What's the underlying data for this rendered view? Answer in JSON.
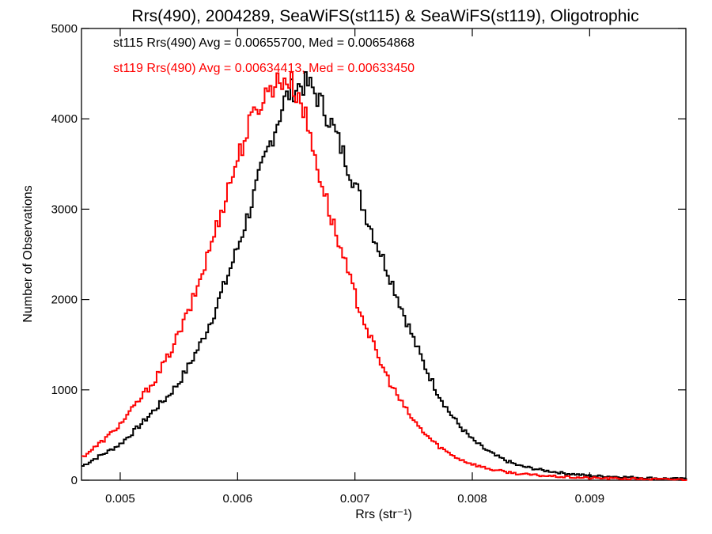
{
  "chart_data": {
    "type": "line",
    "title": "Rrs(490), 2004289, SeaWiFS(st115) & SeaWiFS(st119), Oligotrophic",
    "xlabel": "Rrs (str⁻¹)",
    "ylabel": "Number of Observations",
    "xlim": [
      0.00467,
      0.00982
    ],
    "ylim": [
      0,
      5000
    ],
    "x_ticks": [
      0.005,
      0.006,
      0.007,
      0.008,
      0.009
    ],
    "x_tick_labels": [
      "0.005",
      "0.006",
      "0.007",
      "0.008",
      "0.009"
    ],
    "y_ticks": [
      0,
      1000,
      2000,
      3000,
      4000,
      5000
    ],
    "y_tick_labels": [
      "0",
      "1000",
      "2000",
      "3000",
      "4000",
      "5000"
    ],
    "legend_position": "top-left",
    "series": [
      {
        "name": "st115",
        "label": "st115 Rrs(490) Avg = 0.00655700, Med = 0.00654868",
        "color": "#000000",
        "x": [
          0.00467,
          0.0048,
          0.0049,
          0.005,
          0.0051,
          0.0052,
          0.0053,
          0.0054,
          0.0055,
          0.0056,
          0.0057,
          0.0058,
          0.0059,
          0.006,
          0.0061,
          0.0062,
          0.0063,
          0.0064,
          0.00645,
          0.0065,
          0.00655,
          0.0066,
          0.00665,
          0.0067,
          0.0068,
          0.0069,
          0.007,
          0.0071,
          0.0072,
          0.0073,
          0.0074,
          0.0075,
          0.0076,
          0.0077,
          0.0078,
          0.0079,
          0.008,
          0.0081,
          0.0082,
          0.0083,
          0.0084,
          0.0086,
          0.0088,
          0.009,
          0.0092,
          0.0094,
          0.0096,
          0.00982
        ],
        "values": [
          150,
          250,
          320,
          400,
          520,
          650,
          790,
          920,
          1080,
          1300,
          1550,
          1850,
          2200,
          2570,
          2980,
          3420,
          3820,
          4200,
          4300,
          4350,
          4380,
          4380,
          4310,
          4200,
          3950,
          3620,
          3280,
          2920,
          2580,
          2250,
          1900,
          1560,
          1250,
          980,
          760,
          590,
          450,
          350,
          270,
          210,
          160,
          110,
          75,
          50,
          40,
          30,
          20,
          15
        ]
      },
      {
        "name": "st119",
        "label": "st119 Rrs(490) Avg = 0.00634413, Med = 0.00633450",
        "color": "#ff0000",
        "x": [
          0.00467,
          0.0048,
          0.0049,
          0.005,
          0.0051,
          0.0052,
          0.0053,
          0.0054,
          0.0055,
          0.0056,
          0.0057,
          0.0058,
          0.0059,
          0.006,
          0.0061,
          0.0062,
          0.0063,
          0.0064,
          0.00645,
          0.0065,
          0.00655,
          0.0066,
          0.0067,
          0.0068,
          0.0069,
          0.007,
          0.0071,
          0.0072,
          0.0073,
          0.0074,
          0.0075,
          0.0076,
          0.0077,
          0.0078,
          0.0079,
          0.008,
          0.0081,
          0.0082,
          0.0083,
          0.0084,
          0.0086,
          0.0088,
          0.009,
          0.0092,
          0.0094,
          0.0096,
          0.00982
        ],
        "values": [
          250,
          380,
          490,
          620,
          780,
          950,
          1120,
          1350,
          1620,
          1920,
          2300,
          2720,
          3150,
          3560,
          3930,
          4200,
          4380,
          4450,
          4410,
          4300,
          4180,
          3900,
          3380,
          2900,
          2460,
          2050,
          1690,
          1350,
          1080,
          850,
          660,
          510,
          390,
          300,
          230,
          180,
          140,
          110,
          90,
          70,
          50,
          35,
          25,
          20,
          15,
          10,
          8
        ]
      }
    ]
  }
}
